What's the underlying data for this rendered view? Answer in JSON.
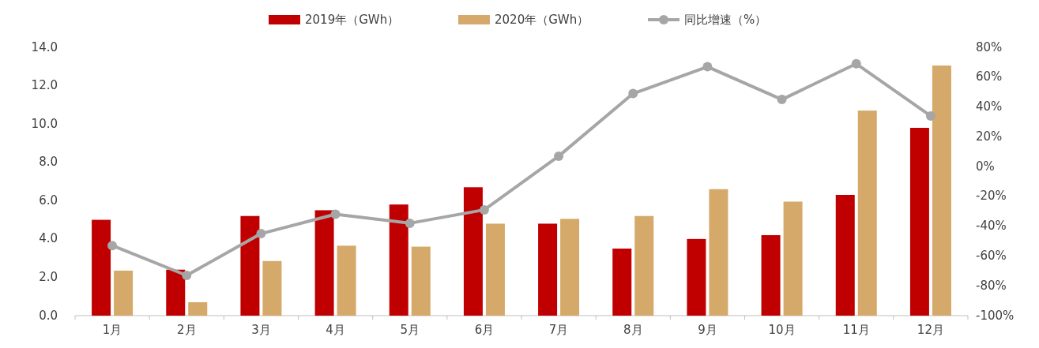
{
  "chart_data": {
    "type": "bar",
    "categories": [
      "1月",
      "2月",
      "3月",
      "4月",
      "5月",
      "6月",
      "7月",
      "8月",
      "9月",
      "10月",
      "11月",
      "12月"
    ],
    "series": [
      {
        "name": "2019年（GWh）",
        "color": "#c00000",
        "values": [
          5.0,
          2.4,
          5.2,
          5.5,
          5.8,
          6.7,
          4.8,
          3.5,
          4.0,
          4.2,
          6.3,
          9.8
        ]
      },
      {
        "name": "2020年（GWh）",
        "color": "#d4a96a",
        "values": [
          2.35,
          0.7,
          2.85,
          3.65,
          3.6,
          4.8,
          5.05,
          5.2,
          6.6,
          5.95,
          10.7,
          13.05
        ]
      },
      {
        "name": "同比增速（%）",
        "color": "#a6a6a6",
        "type": "line",
        "axis": "y2",
        "marker": "circle",
        "values": [
          -53,
          -73,
          -45,
          -32,
          -38,
          -29,
          7,
          49,
          67,
          45,
          69,
          34
        ]
      }
    ],
    "ylim": [
      0,
      14
    ],
    "yticks": [
      {
        "value": 0,
        "label": "0.0"
      },
      {
        "value": 2,
        "label": "2.0"
      },
      {
        "value": 4,
        "label": "4.0"
      },
      {
        "value": 6,
        "label": "6.0"
      },
      {
        "value": 8,
        "label": "8.0"
      },
      {
        "value": 10,
        "label": "10.0"
      },
      {
        "value": 12,
        "label": "12.0"
      },
      {
        "value": 14,
        "label": "14.0"
      }
    ],
    "y2lim": [
      -100,
      80
    ],
    "y2ticks": [
      {
        "value": -100,
        "label": "-100%"
      },
      {
        "value": -80,
        "label": "-80%"
      },
      {
        "value": -60,
        "label": "-60%"
      },
      {
        "value": -40,
        "label": "-40%"
      },
      {
        "value": -20,
        "label": "-20%"
      },
      {
        "value": 0,
        "label": "0%"
      },
      {
        "value": 20,
        "label": "20%"
      },
      {
        "value": 40,
        "label": "40%"
      },
      {
        "value": 60,
        "label": "60%"
      },
      {
        "value": 80,
        "label": "80%"
      }
    ],
    "legend": "top",
    "grid": false
  }
}
